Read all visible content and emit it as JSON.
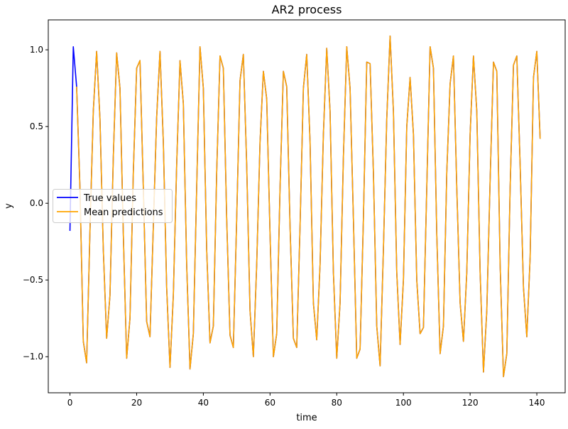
{
  "chart_data": {
    "type": "line",
    "title": "AR2 process",
    "xlabel": "time",
    "ylabel": "y",
    "xlim": [
      -6.5,
      148.5
    ],
    "ylim": [
      -1.235,
      1.195
    ],
    "xticks": [
      0,
      20,
      40,
      60,
      80,
      100,
      120,
      140
    ],
    "xtick_labels": [
      "0",
      "20",
      "40",
      "60",
      "80",
      "100",
      "120",
      "140"
    ],
    "yticks": [
      -1.0,
      -0.5,
      0.0,
      0.5,
      1.0
    ],
    "ytick_labels": [
      "−1.0",
      "−0.5",
      "0.0",
      "0.5",
      "1.0"
    ],
    "grid": false,
    "legend_position": "center-left",
    "series": [
      {
        "name": "True values",
        "color": "#0000ff",
        "x": [
          0,
          1,
          2,
          3,
          4,
          5,
          6,
          7,
          8,
          9,
          10,
          11,
          12,
          13,
          14,
          15,
          16,
          17,
          18,
          19,
          20,
          21,
          22,
          23,
          24,
          25,
          26,
          27,
          28,
          29,
          30,
          31,
          32,
          33,
          34,
          35,
          36,
          37,
          38,
          39,
          40,
          41,
          42,
          43,
          44,
          45,
          46,
          47,
          48,
          49,
          50,
          51,
          52,
          53,
          54,
          55,
          56,
          57,
          58,
          59,
          60,
          61,
          62,
          63,
          64,
          65,
          66,
          67,
          68,
          69,
          70,
          71,
          72,
          73,
          74,
          75,
          76,
          77,
          78,
          79,
          80,
          81,
          82,
          83,
          84,
          85,
          86,
          87,
          88,
          89,
          90,
          91,
          92,
          93,
          94,
          95,
          96,
          97,
          98,
          99,
          100,
          101,
          102,
          103,
          104,
          105,
          106,
          107,
          108,
          109,
          110,
          111,
          112,
          113,
          114,
          115,
          116,
          117,
          118,
          119,
          120,
          121,
          122,
          123,
          124,
          125,
          126,
          127,
          128,
          129,
          130,
          131,
          132,
          133,
          134,
          135,
          136,
          137,
          138,
          139,
          140,
          141
        ],
        "y": [
          -0.18,
          1.02,
          0.76,
          0.1,
          -0.9,
          -1.04,
          -0.18,
          0.6,
          0.99,
          0.55,
          -0.3,
          -0.88,
          -0.6,
          0.3,
          0.98,
          0.75,
          -0.2,
          -1.01,
          -0.75,
          0.2,
          0.88,
          0.93,
          0.1,
          -0.77,
          -0.87,
          -0.15,
          0.56,
          0.99,
          0.4,
          -0.55,
          -1.07,
          -0.6,
          0.25,
          0.93,
          0.65,
          -0.4,
          -1.08,
          -0.85,
          0.1,
          1.02,
          0.75,
          -0.3,
          -0.91,
          -0.8,
          0.2,
          0.96,
          0.88,
          -0.1,
          -0.86,
          -0.94,
          -0.1,
          0.8,
          0.97,
          0.25,
          -0.7,
          -1.0,
          -0.4,
          0.4,
          0.86,
          0.68,
          -0.2,
          -1.0,
          -0.85,
          0.1,
          0.86,
          0.76,
          -0.15,
          -0.88,
          -0.94,
          -0.15,
          0.75,
          0.97,
          0.4,
          -0.65,
          -0.89,
          -0.4,
          0.45,
          1.01,
          0.6,
          -0.45,
          -1.01,
          -0.65,
          0.3,
          1.02,
          0.75,
          -0.1,
          -1.01,
          -0.95,
          -0.1,
          0.92,
          0.91,
          0.2,
          -0.8,
          -1.06,
          -0.3,
          0.55,
          1.09,
          0.6,
          -0.45,
          -0.92,
          -0.5,
          0.5,
          0.82,
          0.45,
          -0.5,
          -0.85,
          -0.81,
          0.1,
          1.02,
          0.88,
          -0.2,
          -0.98,
          -0.8,
          0.2,
          0.78,
          0.96,
          0.1,
          -0.65,
          -0.9,
          -0.45,
          0.45,
          0.96,
          0.6,
          -0.45,
          -1.1,
          -0.7,
          0.15,
          0.92,
          0.86,
          -0.4,
          -1.13,
          -0.98,
          0.1,
          0.9,
          0.96,
          0.25,
          -0.55,
          -0.87,
          -0.35,
          0.82,
          0.99,
          0.42
        ]
      },
      {
        "name": "Mean predictions",
        "color": "#ffa500",
        "x": [
          2,
          3,
          4,
          5,
          6,
          7,
          8,
          9,
          10,
          11,
          12,
          13,
          14,
          15,
          16,
          17,
          18,
          19,
          20,
          21,
          22,
          23,
          24,
          25,
          26,
          27,
          28,
          29,
          30,
          31,
          32,
          33,
          34,
          35,
          36,
          37,
          38,
          39,
          40,
          41,
          42,
          43,
          44,
          45,
          46,
          47,
          48,
          49,
          50,
          51,
          52,
          53,
          54,
          55,
          56,
          57,
          58,
          59,
          60,
          61,
          62,
          63,
          64,
          65,
          66,
          67,
          68,
          69,
          70,
          71,
          72,
          73,
          74,
          75,
          76,
          77,
          78,
          79,
          80,
          81,
          82,
          83,
          84,
          85,
          86,
          87,
          88,
          89,
          90,
          91,
          92,
          93,
          94,
          95,
          96,
          97,
          98,
          99,
          100,
          101,
          102,
          103,
          104,
          105,
          106,
          107,
          108,
          109,
          110,
          111,
          112,
          113,
          114,
          115,
          116,
          117,
          118,
          119,
          120,
          121,
          122,
          123,
          124,
          125,
          126,
          127,
          128,
          129,
          130,
          131,
          132,
          133,
          134,
          135,
          136,
          137,
          138,
          139,
          140,
          141
        ],
        "y": [
          0.76,
          0.1,
          -0.9,
          -1.04,
          -0.18,
          0.6,
          0.99,
          0.55,
          -0.3,
          -0.88,
          -0.6,
          0.3,
          0.98,
          0.75,
          -0.2,
          -1.01,
          -0.75,
          0.2,
          0.88,
          0.93,
          0.1,
          -0.77,
          -0.87,
          -0.15,
          0.56,
          0.99,
          0.4,
          -0.55,
          -1.07,
          -0.6,
          0.25,
          0.93,
          0.65,
          -0.4,
          -1.08,
          -0.85,
          0.1,
          1.02,
          0.75,
          -0.3,
          -0.91,
          -0.8,
          0.2,
          0.96,
          0.88,
          -0.1,
          -0.86,
          -0.94,
          -0.1,
          0.8,
          0.97,
          0.25,
          -0.7,
          -1.0,
          -0.4,
          0.4,
          0.86,
          0.68,
          -0.2,
          -1.0,
          -0.85,
          0.1,
          0.86,
          0.76,
          -0.15,
          -0.88,
          -0.94,
          -0.15,
          0.75,
          0.97,
          0.4,
          -0.65,
          -0.89,
          -0.4,
          0.45,
          1.01,
          0.6,
          -0.45,
          -1.01,
          -0.65,
          0.3,
          1.02,
          0.75,
          -0.1,
          -1.01,
          -0.95,
          -0.1,
          0.92,
          0.91,
          0.2,
          -0.8,
          -1.06,
          -0.3,
          0.55,
          1.09,
          0.6,
          -0.45,
          -0.92,
          -0.5,
          0.5,
          0.82,
          0.45,
          -0.5,
          -0.85,
          -0.81,
          0.1,
          1.02,
          0.88,
          -0.2,
          -0.98,
          -0.8,
          0.2,
          0.78,
          0.96,
          0.1,
          -0.65,
          -0.9,
          -0.45,
          0.45,
          0.96,
          0.6,
          -0.45,
          -1.1,
          -0.7,
          0.15,
          0.92,
          0.86,
          -0.4,
          -1.13,
          -0.98,
          0.1,
          0.9,
          0.96,
          0.25,
          -0.55,
          -0.87,
          -0.35,
          0.82,
          0.99,
          0.42
        ]
      }
    ]
  }
}
